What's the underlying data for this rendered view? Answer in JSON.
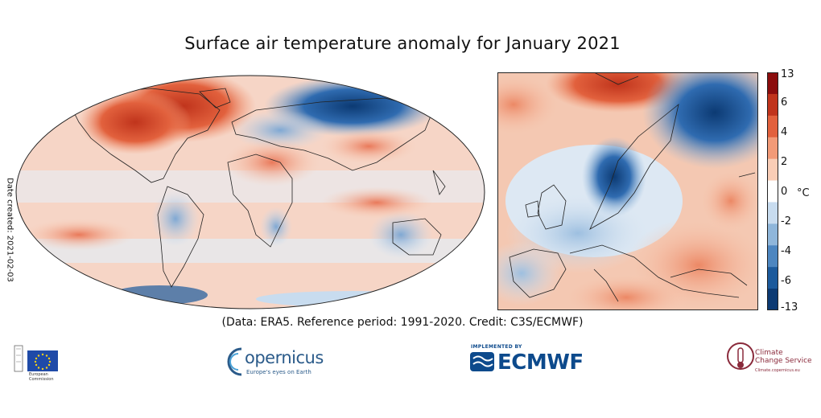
{
  "title": "Surface air temperature anomaly for January 2021",
  "credit": "(Data: ERA5.  Reference period: 1991-2020.  Credit: C3S/ECMWF)",
  "date_created": "Date created: 2021-02-03",
  "colorbar": {
    "unit": "°C",
    "ticks": [
      "13",
      "6",
      "4",
      "2",
      "0",
      "-2",
      "-4",
      "-6",
      "-13"
    ],
    "colors": [
      "#8b0d0d",
      "#c0341c",
      "#e2613d",
      "#f29a77",
      "#f9cdb6",
      "#ffffff",
      "#c8dcef",
      "#8fb6da",
      "#4d86c0",
      "#1c5a9c",
      "#0c3a73"
    ]
  },
  "logos": {
    "eu": {
      "caption_line1": "European",
      "caption_line2": "Commission",
      "icon": "eu-flag-icon"
    },
    "copernicus": {
      "word": "opernicus",
      "tagline": "Europe's eyes on Earth",
      "icon": "copernicus-c-icon"
    },
    "ecmwf": {
      "implemented": "IMPLEMENTED BY",
      "word": "ECMWF",
      "icon": "ecmwf-waves-icon"
    },
    "c3s": {
      "line1": "Climate",
      "line2": "Change Service",
      "tagline": "Climate.copernicus.eu",
      "icon": "c3s-thermometer-icon"
    }
  }
}
